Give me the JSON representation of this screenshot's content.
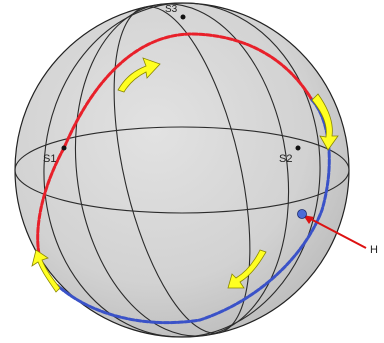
{
  "labels": {
    "s1": "S1",
    "s2": "S2",
    "s3": "S3",
    "h": "H"
  },
  "colors": {
    "sphere_fill": "#d4d4d4",
    "outline": "#222222",
    "red_path": "#e8202a",
    "blue_path": "#3a52c8",
    "arrow_fill": "#ffff22",
    "arrow_shade": "#c9c400",
    "pointer": "#dd1111",
    "h_point": "#4b6bd6"
  },
  "arrows": {
    "count": 4,
    "icon": "curved-direction-arrow"
  }
}
